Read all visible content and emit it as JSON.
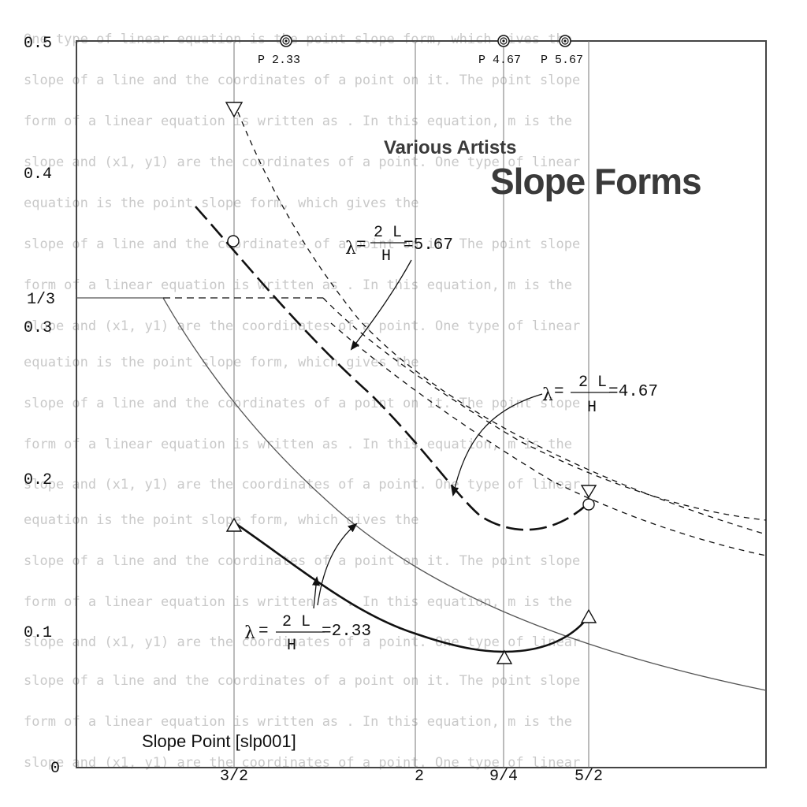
{
  "cover": {
    "artist": "Various Artists",
    "title": "Slope Forms",
    "catalog": "Slope Point [slp001]"
  },
  "background_text": [
    "One type of linear equation is the point slope form, which gives the",
    "slope of a line and the coordinates of a point on it. The point slope",
    "form of a linear equation is written as . In this equation, m is the",
    "slope and (x1, y1) are the coordinates of a point. One type of linear",
    "equation is the point slope form, which gives the",
    "slope of a line and the coordinates of a point on it. The point slope",
    "form of a linear equation is written as . In this equation, m is the",
    "slope and (x1, y1) are the coordinates of a point. One type of linear",
    " equation is the point slope form, which gives the",
    "slope of a line and the coordinates of a point on it. The point slope",
    "form of a linear equation is written as . In this equation, m is the",
    "slope and (x1, y1) are the coordinates of a point. One type of linear",
    "equation is the point slope form, which gives the",
    "slope of a line and the coordinates of a point on it. The point slope",
    "form of a linear equation is written as . In this equation, m is the",
    "slope and (x1, y1) are the coordinates of a point. One type of linear",
    "slope of a line and the coordinates of a point on it. The point slope",
    "form of a linear equation is written as . In this equation, m is the",
    "slope and (x1, y1) are the coordinates of a point. One type of linear"
  ],
  "y_ticks": [
    "0.5",
    "0.4",
    "1/3",
    "0.3",
    "0.2",
    "0.1",
    "0"
  ],
  "x_ticks": [
    "3/2",
    "2",
    "9/4",
    "5/2"
  ],
  "top_markers": [
    "P 2.33",
    "P 4.67",
    "P 5.67"
  ],
  "lambda_labels": [
    {
      "lambda": "λ",
      "eq": "=",
      "num": "2 L",
      "den": "H",
      "value": "=5.67"
    },
    {
      "lambda": "λ",
      "eq": "=",
      "num": "2 L",
      "den": "H",
      "value": "=4.67"
    },
    {
      "lambda": "λ",
      "eq": "=",
      "num": "2 L",
      "den": "H",
      "value": "=2.33"
    }
  ]
}
